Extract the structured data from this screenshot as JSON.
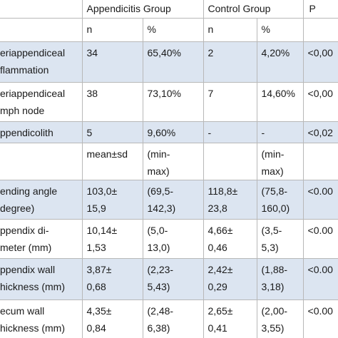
{
  "header": {
    "appendicitis": "Appendicitis Group",
    "control": "Control Group",
    "p": "P"
  },
  "subheader": [
    "n",
    "%",
    "n",
    "%"
  ],
  "rows": [
    {
      "label": [
        "eriappendiceal",
        "flammation"
      ],
      "cells": [
        [
          "34"
        ],
        [
          "65,40%"
        ],
        [
          "2"
        ],
        [
          "4,20%"
        ],
        [
          "<0,00"
        ]
      ]
    },
    {
      "label": [
        "eriappendiceal",
        "mph node"
      ],
      "cells": [
        [
          "38"
        ],
        [
          "73,10%"
        ],
        [
          "7"
        ],
        [
          "14,60%"
        ],
        [
          "<0,00"
        ]
      ]
    },
    {
      "label": [
        "ppendicolith"
      ],
      "cells": [
        [
          "5"
        ],
        [
          "9,60%"
        ],
        [
          "-"
        ],
        [
          "-"
        ],
        [
          "<0,02"
        ]
      ]
    },
    {
      "label": [],
      "cells": [
        [
          "mean±sd"
        ],
        [
          "(min-",
          "max)"
        ],
        [],
        [
          "(min-",
          "max)"
        ],
        []
      ]
    },
    {
      "label": [
        "ending angle",
        "degree)"
      ],
      "cells": [
        [
          "103,0±",
          "15,9"
        ],
        [
          "(69,5-",
          "142,3)"
        ],
        [
          "118,8±",
          "23,8"
        ],
        [
          "(75,8-",
          "160,0)"
        ],
        [
          "<0.00"
        ]
      ]
    },
    {
      "label": [
        "ppendix di-",
        "meter (mm)"
      ],
      "cells": [
        [
          "10,14±",
          "1,53"
        ],
        [
          "(5,0-",
          "13,0)"
        ],
        [
          "4,66±",
          "0,46"
        ],
        [
          "(3,5-",
          "5,3)"
        ],
        [
          "<0.00"
        ]
      ]
    },
    {
      "label": [
        "ppendix wall",
        "hickness (mm)"
      ],
      "cells": [
        [
          "3,87±",
          "0,68"
        ],
        [
          "(2,23-",
          "5,43)"
        ],
        [
          "2,42±",
          "0,29"
        ],
        [
          "(1,88-",
          "3,18)"
        ],
        [
          "<0.00"
        ]
      ]
    },
    {
      "label": [
        "ecum wall",
        "hickness (mm)"
      ],
      "cells": [
        [
          "4,35±",
          "0,84"
        ],
        [
          "(2,48-",
          "6,38)"
        ],
        [
          "2,65±",
          "0,41"
        ],
        [
          "(2,00-",
          "3,55)"
        ],
        [
          "<0.00"
        ]
      ]
    }
  ]
}
